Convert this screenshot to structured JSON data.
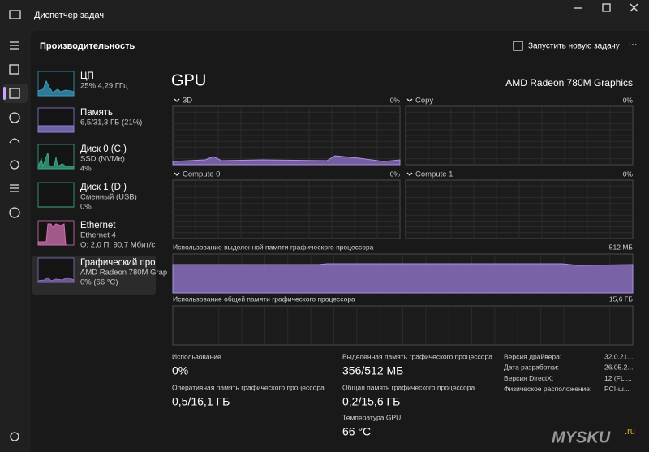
{
  "window": {
    "title": "Диспетчер задач"
  },
  "header": {
    "title": "Производительность",
    "action": "Запустить новую задачу"
  },
  "sidebar": [
    {
      "name": "ЦП",
      "lines": [
        "25% 4,29 ГГц"
      ]
    },
    {
      "name": "Память",
      "lines": [
        "6,5/31,3 ГБ (21%)"
      ]
    },
    {
      "name": "Диск 0 (C:)",
      "lines": [
        "SSD (NVMe)",
        "4%"
      ]
    },
    {
      "name": "Диск 1 (D:)",
      "lines": [
        "Сменный (USB)",
        "0%"
      ]
    },
    {
      "name": "Ethernet",
      "lines": [
        "Ethernet 4",
        "О: 2,0 П: 90,7 Мбит/с"
      ]
    },
    {
      "name": "Графический про",
      "lines": [
        "AMD Radeon 780M Grap",
        "0% (66 °C)"
      ]
    }
  ],
  "main": {
    "title": "GPU",
    "device": "AMD Radeon 780M Graphics",
    "graphs": [
      {
        "label": "3D",
        "value": "0%"
      },
      {
        "label": "Copy",
        "value": "0%"
      },
      {
        "label": "Compute 0",
        "value": "0%"
      },
      {
        "label": "Compute 1",
        "value": "0%"
      }
    ],
    "dedicated": {
      "label": "Использование выделенной памяти графического процессора",
      "max": "512 МБ"
    },
    "shared": {
      "label": "Использование общей памяти графического процессора",
      "max": "15,6 ГБ"
    },
    "stats": [
      {
        "label": "Использование",
        "value": "0%"
      },
      {
        "label": "Оперативная память графического процессора",
        "value": "0,5/16,1 ГБ"
      },
      {
        "label": "Выделенная память графического процессора",
        "value": "356/512 МБ"
      },
      {
        "label": "Общая память графического процессора",
        "value": "0,2/15,6 ГБ"
      },
      {
        "label": "Температура GPU",
        "value": "66 °C"
      }
    ],
    "details": [
      {
        "label": "Версия драйвера:",
        "value": "32.0.21..."
      },
      {
        "label": "Дата разработки:",
        "value": "26.05.2..."
      },
      {
        "label": "Версия DirectX:",
        "value": "12 (FL ..."
      },
      {
        "label": "Физическое расположение:",
        "value": "PCI-ш..."
      }
    ]
  },
  "watermark": {
    "brand": "MYSKU",
    "suffix": ".ru"
  }
}
